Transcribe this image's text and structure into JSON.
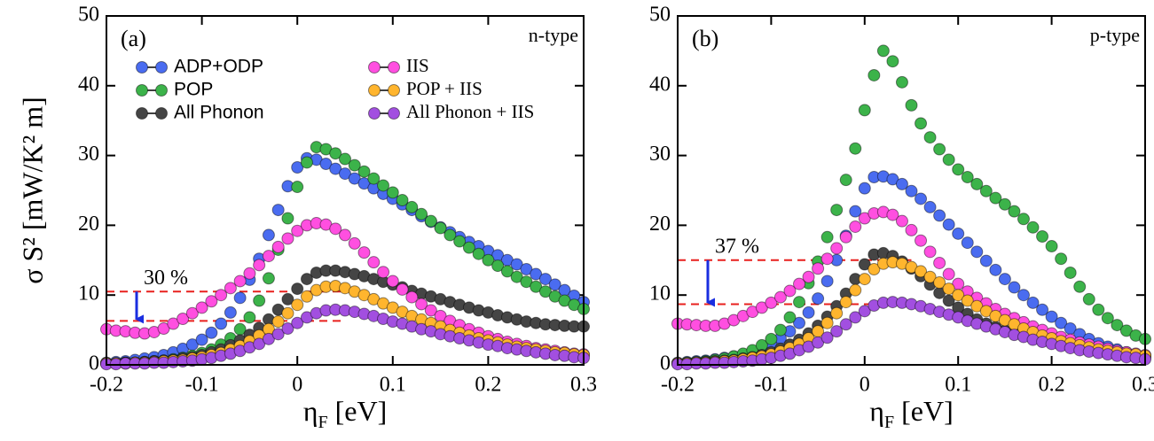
{
  "chart_data": [
    {
      "type": "scatter",
      "panel_label": "(a)",
      "note": "n-type",
      "ylabel": "σ S² [mW/K² m]",
      "xlabel": [
        "η",
        "F",
        " [eV]"
      ],
      "xlim": [
        -0.2,
        0.3
      ],
      "xticks": [
        -0.2,
        -0.1,
        0,
        0.1,
        0.2,
        0.3
      ],
      "ylim": [
        0,
        50
      ],
      "yticks": [
        0,
        10,
        20,
        30,
        40,
        50
      ],
      "legend": "upper left",
      "hlines": [
        10.5,
        6.3
      ],
      "annotation": "30 %",
      "x": [
        -0.2,
        -0.19,
        -0.18,
        -0.17,
        -0.16,
        -0.15,
        -0.14,
        -0.13,
        -0.12,
        -0.11,
        -0.1,
        -0.09,
        -0.08,
        -0.07,
        -0.06,
        -0.05,
        -0.04,
        -0.03,
        -0.02,
        -0.01,
        0,
        0.01,
        0.02,
        0.03,
        0.04,
        0.05,
        0.06,
        0.07,
        0.08,
        0.09,
        0.1,
        0.11,
        0.12,
        0.13,
        0.14,
        0.15,
        0.16,
        0.17,
        0.18,
        0.19,
        0.2,
        0.21,
        0.22,
        0.23,
        0.24,
        0.25,
        0.26,
        0.27,
        0.28,
        0.29,
        0.3
      ],
      "series": [
        {
          "name": "ADP+ODP",
          "color": "#4a6cf0",
          "values": [
            0.3,
            0.4,
            0.5,
            0.7,
            0.9,
            1.1,
            1.4,
            1.8,
            2.3,
            2.9,
            3.6,
            4.6,
            5.9,
            7.5,
            9.6,
            12.2,
            15.2,
            18.6,
            22.2,
            25.6,
            28.3,
            29.6,
            29.4,
            28.8,
            28.1,
            27.4,
            26.7,
            26.0,
            25.3,
            24.5,
            23.8,
            23.0,
            22.2,
            21.3,
            20.5,
            19.7,
            19.0,
            18.3,
            17.6,
            17.0,
            16.3,
            15.7,
            15.0,
            14.4,
            13.7,
            13.0,
            12.3,
            11.5,
            10.7,
            9.9,
            9.0
          ]
        },
        {
          "name": "POP",
          "color": "#3cb34a",
          "values": [
            0.2,
            0.2,
            0.3,
            0.3,
            0.4,
            0.5,
            0.6,
            0.8,
            1.0,
            1.3,
            1.7,
            2.2,
            2.9,
            3.8,
            5.1,
            6.8,
            9.2,
            12.4,
            16.5,
            21.0,
            25.5,
            29.0,
            31.2,
            30.9,
            30.3,
            29.5,
            28.6,
            27.7,
            26.7,
            25.7,
            24.7,
            23.6,
            22.6,
            21.6,
            20.6,
            19.6,
            18.6,
            17.7,
            16.8,
            15.9,
            15.0,
            14.2,
            13.4,
            12.6,
            11.9,
            11.2,
            10.5,
            9.8,
            9.2,
            8.6,
            8.0
          ]
        },
        {
          "name": "All Phonon",
          "color": "#454545",
          "values": [
            0.2,
            0.2,
            0.3,
            0.3,
            0.4,
            0.5,
            0.6,
            0.7,
            0.9,
            1.1,
            1.4,
            1.8,
            2.2,
            2.8,
            3.5,
            4.3,
            5.3,
            6.5,
            7.9,
            9.4,
            10.9,
            12.3,
            13.2,
            13.5,
            13.5,
            13.3,
            13.0,
            12.7,
            12.3,
            11.9,
            11.5,
            11.1,
            10.6,
            10.2,
            9.8,
            9.4,
            9.0,
            8.6,
            8.2,
            7.8,
            7.5,
            7.1,
            6.8,
            6.5,
            6.2,
            6.0,
            5.8,
            5.7,
            5.6,
            5.5,
            5.5
          ]
        },
        {
          "name": "IIS",
          "color": "#ff4fe0",
          "values": [
            5.1,
            4.9,
            4.8,
            4.6,
            4.5,
            4.7,
            5.2,
            5.9,
            6.6,
            7.4,
            8.2,
            9.1,
            10.0,
            11.0,
            12.0,
            13.1,
            14.3,
            15.6,
            16.9,
            18.1,
            19.2,
            20.0,
            20.3,
            20.1,
            19.5,
            18.6,
            17.4,
            16.1,
            14.7,
            13.3,
            12.0,
            10.8,
            9.7,
            8.7,
            7.8,
            7.0,
            6.3,
            5.7,
            5.1,
            4.6,
            4.1,
            3.7,
            3.3,
            3.0,
            2.7,
            2.4,
            2.2,
            2.0,
            1.8,
            1.6,
            1.5
          ]
        },
        {
          "name": "POP + IIS",
          "color": "#ffb52e",
          "values": [
            0.2,
            0.2,
            0.2,
            0.3,
            0.3,
            0.4,
            0.5,
            0.6,
            0.7,
            0.9,
            1.1,
            1.4,
            1.7,
            2.2,
            2.7,
            3.4,
            4.2,
            5.1,
            6.2,
            7.4,
            8.6,
            9.8,
            10.7,
            11.2,
            11.3,
            11.0,
            10.5,
            10.0,
            9.4,
            8.8,
            8.2,
            7.6,
            7.0,
            6.5,
            6.0,
            5.5,
            5.0,
            4.6,
            4.2,
            3.8,
            3.5,
            3.2,
            2.9,
            2.6,
            2.4,
            2.2,
            2.0,
            1.8,
            1.7,
            1.5,
            1.4
          ]
        },
        {
          "name": "All Phonon + IIS",
          "color": "#a24fe0",
          "values": [
            0.1,
            0.1,
            0.2,
            0.2,
            0.2,
            0.3,
            0.3,
            0.4,
            0.5,
            0.6,
            0.8,
            1.0,
            1.3,
            1.6,
            2.0,
            2.5,
            3.0,
            3.7,
            4.4,
            5.2,
            6.0,
            6.8,
            7.4,
            7.8,
            7.9,
            7.8,
            7.6,
            7.3,
            7.0,
            6.6,
            6.2,
            5.9,
            5.5,
            5.1,
            4.8,
            4.4,
            4.1,
            3.8,
            3.5,
            3.2,
            2.9,
            2.7,
            2.4,
            2.2,
            2.0,
            1.8,
            1.6,
            1.4,
            1.3,
            1.1,
            1.0
          ]
        }
      ]
    },
    {
      "type": "scatter",
      "panel_label": "(b)",
      "note": "p-type",
      "xlabel": [
        "η",
        "F",
        " [eV]"
      ],
      "xlim": [
        -0.2,
        0.3
      ],
      "xticks": [
        -0.2,
        -0.1,
        0,
        0.1,
        0.2,
        0.3
      ],
      "ylim": [
        0,
        50
      ],
      "yticks": [
        0,
        10,
        20,
        30,
        40,
        50
      ],
      "hlines": [
        15,
        8.7
      ],
      "annotation": "37 %",
      "x": [
        -0.2,
        -0.19,
        -0.18,
        -0.17,
        -0.16,
        -0.15,
        -0.14,
        -0.13,
        -0.12,
        -0.11,
        -0.1,
        -0.09,
        -0.08,
        -0.07,
        -0.06,
        -0.05,
        -0.04,
        -0.03,
        -0.02,
        -0.01,
        0,
        0.01,
        0.02,
        0.03,
        0.04,
        0.05,
        0.06,
        0.07,
        0.08,
        0.09,
        0.1,
        0.11,
        0.12,
        0.13,
        0.14,
        0.15,
        0.16,
        0.17,
        0.18,
        0.19,
        0.2,
        0.21,
        0.22,
        0.23,
        0.24,
        0.25,
        0.26,
        0.27,
        0.28,
        0.29,
        0.3
      ],
      "series": [
        {
          "color": "#4a6cf0",
          "values": [
            0.3,
            0.4,
            0.5,
            0.6,
            0.8,
            1.0,
            1.2,
            1.5,
            1.9,
            2.4,
            3.0,
            3.8,
            4.8,
            6.0,
            7.5,
            9.5,
            12.0,
            15.0,
            18.5,
            22.0,
            25.3,
            26.9,
            27.0,
            26.6,
            25.9,
            24.9,
            23.8,
            22.6,
            21.4,
            20.1,
            18.8,
            17.5,
            16.2,
            14.9,
            13.6,
            12.3,
            11.1,
            10.0,
            8.9,
            7.9,
            6.9,
            6.0,
            5.2,
            4.4,
            3.7,
            3.1,
            2.6,
            2.2,
            1.8,
            1.5,
            1.3
          ]
        },
        {
          "color": "#3cb34a",
          "values": [
            0.2,
            0.3,
            0.4,
            0.5,
            0.7,
            0.9,
            1.2,
            1.6,
            2.1,
            2.8,
            3.7,
            5.0,
            6.8,
            9.0,
            11.7,
            14.8,
            18.3,
            22.2,
            26.5,
            31.0,
            36.5,
            41.5,
            45.0,
            43.5,
            40.5,
            37.2,
            34.6,
            32.6,
            30.9,
            29.4,
            28.0,
            26.9,
            25.9,
            24.9,
            23.9,
            23.0,
            22.0,
            20.9,
            19.7,
            18.4,
            17.0,
            15.2,
            13.2,
            11.2,
            9.4,
            7.9,
            6.7,
            5.7,
            4.9,
            4.2,
            3.7
          ]
        },
        {
          "color": "#454545",
          "values": [
            0.2,
            0.2,
            0.3,
            0.4,
            0.5,
            0.6,
            0.7,
            0.9,
            1.1,
            1.4,
            1.8,
            2.3,
            2.9,
            3.6,
            4.5,
            5.6,
            6.9,
            8.4,
            10.2,
            12.3,
            14.4,
            15.8,
            16.0,
            15.6,
            14.8,
            13.8,
            12.7,
            11.5,
            10.3,
            9.2,
            8.2,
            7.3,
            6.5,
            5.9,
            5.4,
            4.9,
            4.5,
            4.1,
            3.7,
            3.4,
            3.1,
            2.8,
            2.5,
            2.3,
            2.0,
            1.8,
            1.6,
            1.4,
            1.3,
            1.1,
            1.0
          ]
        },
        {
          "color": "#ff4fe0",
          "values": [
            5.9,
            5.8,
            5.7,
            5.6,
            5.6,
            5.9,
            6.4,
            7.0,
            7.6,
            8.2,
            8.9,
            9.7,
            10.6,
            11.6,
            12.6,
            13.8,
            15.2,
            16.7,
            18.3,
            19.8,
            21.0,
            21.7,
            21.9,
            21.5,
            20.6,
            19.3,
            17.8,
            16.2,
            14.6,
            13.0,
            11.6,
            10.5,
            9.6,
            8.8,
            8.0,
            7.3,
            6.7,
            6.1,
            5.5,
            5.0,
            4.5,
            4.0,
            3.6,
            3.2,
            2.9,
            2.6,
            2.3,
            2.0,
            1.8,
            1.6,
            1.4
          ]
        },
        {
          "color": "#ffb52e",
          "values": [
            0.2,
            0.2,
            0.3,
            0.3,
            0.4,
            0.5,
            0.6,
            0.8,
            1.0,
            1.2,
            1.5,
            1.9,
            2.4,
            3.0,
            3.8,
            4.8,
            6.0,
            7.4,
            9.0,
            10.7,
            12.3,
            13.7,
            14.5,
            14.7,
            14.5,
            14.0,
            13.4,
            12.6,
            11.8,
            10.9,
            10.0,
            9.2,
            8.4,
            7.7,
            7.0,
            6.4,
            5.8,
            5.2,
            4.7,
            4.2,
            3.8,
            3.4,
            3.1,
            2.8,
            2.5,
            2.2,
            2.0,
            1.8,
            1.6,
            1.5,
            1.3
          ]
        },
        {
          "color": "#a24fe0",
          "values": [
            0.1,
            0.1,
            0.2,
            0.2,
            0.3,
            0.3,
            0.4,
            0.5,
            0.6,
            0.8,
            1.0,
            1.3,
            1.6,
            2.1,
            2.6,
            3.2,
            3.9,
            4.8,
            5.8,
            6.8,
            7.7,
            8.5,
            8.9,
            9.0,
            8.9,
            8.7,
            8.4,
            8.0,
            7.6,
            7.2,
            6.8,
            6.3,
            5.9,
            5.5,
            5.1,
            4.7,
            4.3,
            4.0,
            3.6,
            3.3,
            3.0,
            2.7,
            2.4,
            2.1,
            1.9,
            1.7,
            1.5,
            1.3,
            1.1,
            1.0,
            0.8
          ]
        }
      ]
    }
  ]
}
